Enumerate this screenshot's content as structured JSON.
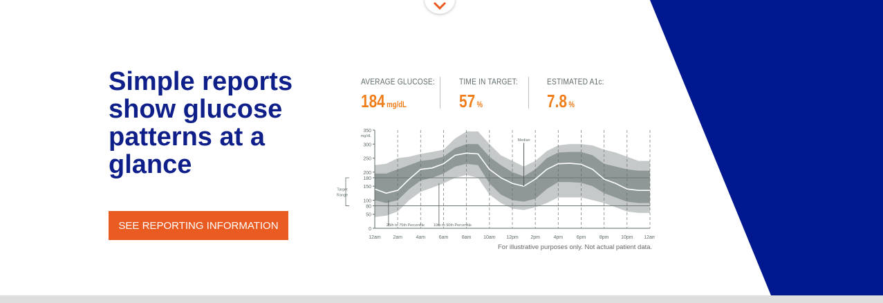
{
  "hero": {
    "headline": "Simple reports show glucose patterns at a glance",
    "cta_label": "SEE REPORTING INFORMATION"
  },
  "stats": [
    {
      "label": "AVERAGE GLUCOSE:",
      "value": "184",
      "unit": "mg/dL"
    },
    {
      "label": "TIME IN TARGET:",
      "value": "57",
      "unit": "%"
    },
    {
      "label": "ESTIMATED A1c:",
      "value": "7.8",
      "unit": "%"
    }
  ],
  "chart_data": {
    "type": "area",
    "y_unit": "mg/dL",
    "yticks": [
      0,
      50,
      80,
      100,
      150,
      180,
      200,
      250,
      300,
      350
    ],
    "ylim": [
      0,
      350
    ],
    "xticks": [
      "12am",
      "2am",
      "4am",
      "6am",
      "8am",
      "10am",
      "12pm",
      "2pm",
      "4pm",
      "6pm",
      "8pm",
      "10pm",
      "12am"
    ],
    "target_range": [
      80,
      180
    ],
    "target_label": "Target Range",
    "annotations": [
      "Median",
      "25th to 75th Percentile",
      "10th to 90th Percentile"
    ],
    "hours": [
      0,
      1,
      2,
      3,
      4,
      5,
      6,
      7,
      8,
      9,
      10,
      11,
      12,
      13,
      14,
      15,
      16,
      17,
      18,
      19,
      20,
      21,
      22,
      23,
      24
    ],
    "median": [
      140,
      125,
      135,
      175,
      210,
      215,
      230,
      260,
      268,
      265,
      210,
      180,
      160,
      150,
      175,
      210,
      230,
      232,
      228,
      210,
      175,
      160,
      140,
      135,
      135
    ],
    "p25": [
      100,
      90,
      100,
      140,
      170,
      180,
      195,
      220,
      230,
      225,
      160,
      120,
      100,
      95,
      105,
      140,
      165,
      165,
      162,
      150,
      125,
      110,
      95,
      90,
      90
    ],
    "p75": [
      195,
      195,
      210,
      225,
      240,
      245,
      255,
      285,
      300,
      300,
      255,
      225,
      200,
      185,
      210,
      250,
      270,
      272,
      272,
      260,
      230,
      220,
      210,
      205,
      205
    ],
    "p10": [
      40,
      45,
      60,
      100,
      130,
      145,
      160,
      180,
      190,
      180,
      120,
      90,
      70,
      65,
      75,
      90,
      110,
      110,
      110,
      100,
      90,
      75,
      60,
      55,
      55
    ],
    "p90": [
      225,
      230,
      250,
      255,
      265,
      272,
      280,
      320,
      345,
      345,
      300,
      260,
      240,
      220,
      240,
      275,
      295,
      300,
      300,
      295,
      280,
      270,
      255,
      240,
      240
    ]
  },
  "disclaimer": "For illustrative purposes only. Not actual patient data.",
  "colors": {
    "brand_blue": "#0f1f8a",
    "panel_blue": "#00188f",
    "accent_orange": "#e95b20",
    "stat_orange": "#f07d1a",
    "band_outer": "#c5c9c9",
    "band_inner": "#8f9797",
    "axis_gray": "#5f6a6a"
  },
  "icons": {
    "scroll_button": "chevron-down-icon"
  }
}
